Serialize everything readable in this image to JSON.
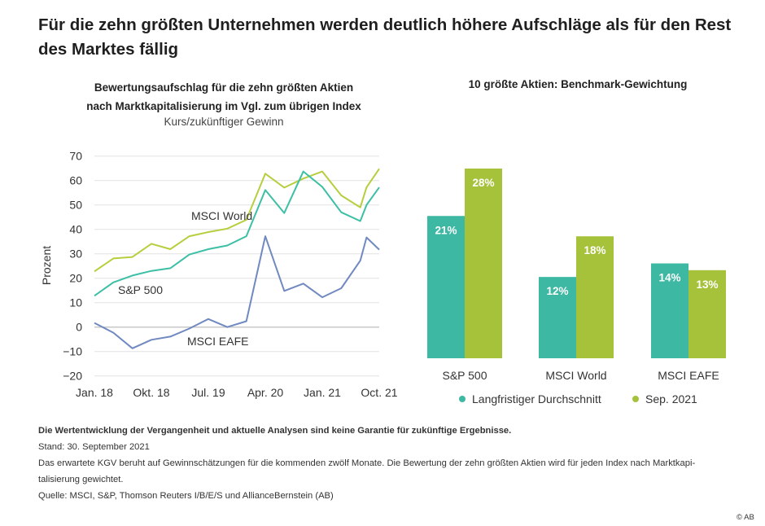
{
  "title": "Für die zehn größten Unternehmen werden deutlich höhere Aufschläge als für den Rest des Marktes fällig",
  "chart_data": [
    {
      "type": "line",
      "title": "Bewertungsaufschlag für die zehn größten Aktien nach Marktkapitalisierung im Vgl. zum übrigen Index",
      "title_lines": [
        "Bewertungsaufschlag für die zehn größten Aktien",
        "nach Marktkapitalisierung im Vgl. zum übrigen Index"
      ],
      "subtitle": "Kurs/zukünftiger Gewinn",
      "ylabel": "Prozent",
      "ylim": [
        -20,
        70
      ],
      "yticks": [
        70,
        60,
        50,
        40,
        30,
        20,
        10,
        0,
        -10,
        -20
      ],
      "xticks": [
        "Jan. 18",
        "Okt. 18",
        "Jul. 19",
        "Apr. 20",
        "Jan. 21",
        "Oct. 21"
      ],
      "grid": true,
      "x": [
        "2018-01",
        "2018-04",
        "2018-07",
        "2018-10",
        "2019-01",
        "2019-04",
        "2019-07",
        "2019-10",
        "2020-01",
        "2020-04",
        "2020-07",
        "2020-10",
        "2021-01",
        "2021-04",
        "2021-07",
        "2021-08",
        "2021-10"
      ],
      "series": [
        {
          "name": "MSCI World",
          "color": "#b5cf3e",
          "values": [
            22.8,
            28.1,
            28.7,
            34.1,
            31.9,
            37.2,
            38.9,
            40.3,
            43.9,
            62.8,
            57.1,
            60.8,
            63.7,
            53.9,
            49.0,
            57.2,
            64.8
          ]
        },
        {
          "name": "S&P 500",
          "color": "#3dbfa5",
          "values": [
            12.8,
            18.3,
            21.1,
            23.0,
            24.1,
            29.7,
            31.9,
            33.4,
            37.2,
            56.1,
            46.7,
            63.7,
            57.4,
            47.0,
            43.4,
            50.0,
            57.2
          ]
        },
        {
          "name": "MSCI EAFE",
          "color": "#7089c0",
          "values": [
            1.7,
            -2.3,
            -8.7,
            -5.2,
            -3.9,
            -0.6,
            3.3,
            0.0,
            2.4,
            37.2,
            14.8,
            17.8,
            12.2,
            15.9,
            27.2,
            36.7,
            31.7
          ]
        }
      ]
    },
    {
      "type": "bar",
      "title": "10 größte Aktien: Benchmark-Gewichtung",
      "categories": [
        "S&P 500",
        "MSCI World",
        "MSCI EAFE"
      ],
      "series": [
        {
          "name": "Langfristiger Durchschnitt",
          "color": "#3db8a3",
          "values": [
            21,
            12,
            14
          ],
          "labels": [
            "21%",
            "12%",
            "14%"
          ]
        },
        {
          "name": "Sep. 2021",
          "color": "#a5c23a",
          "values": [
            28,
            18,
            13
          ],
          "labels": [
            "28%",
            "18%",
            "13%"
          ]
        }
      ],
      "legend": "bottom"
    }
  ],
  "notes": {
    "disclaimer": "Die Wertentwicklung der Vergangenheit und aktuelle Analysen sind keine Garantie für zukünftige Ergebnisse.",
    "stand": "Stand: 30. September 2021",
    "kgv_line1": "Das erwartete KGV beruht auf Gewinnschätzungen für die kommenden zwölf Monate. Die Bewertung der zehn größten Aktien wird für jeden Index nach Marktkapi-",
    "kgv_line2": "talisierung gewichtet.",
    "source": "Quelle: MSCI, S&P, Thomson Reuters I/B/E/S und AllianceBernstein (AB)",
    "copyright": "© AB"
  }
}
